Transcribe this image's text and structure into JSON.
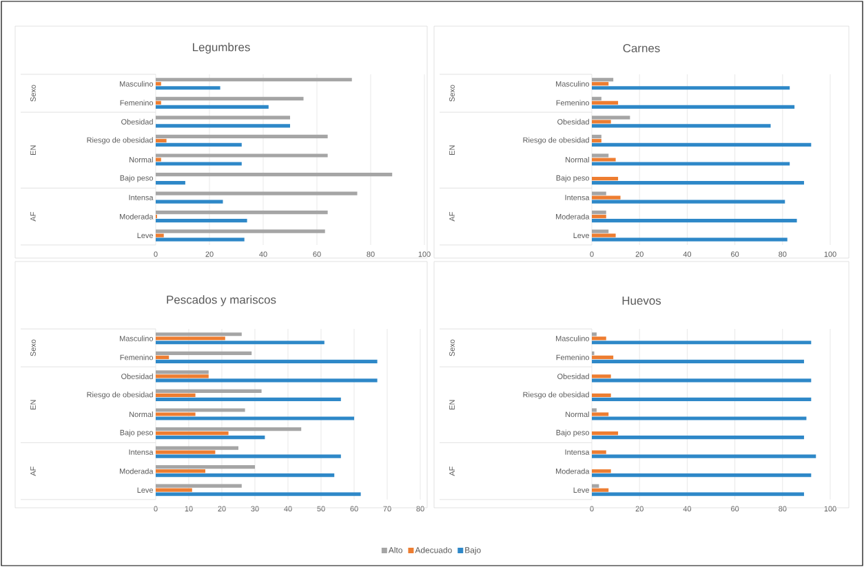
{
  "chart_data": [
    {
      "type": "bar",
      "orientation": "horizontal",
      "title": "Legumbres",
      "categories": [
        "Masculino",
        "Femenino",
        "Obesidad",
        "Riesgo de obesidad",
        "Normal",
        "Bajo peso",
        "Intensa",
        "Moderada",
        "Leve"
      ],
      "annotations": [
        "Sexo",
        "EN",
        "AF"
      ],
      "xlim": [
        0,
        100
      ],
      "xticks": [
        0,
        20,
        40,
        60,
        80,
        100
      ],
      "grid": "x",
      "series": [
        {
          "color": "#a5a5a5",
          "values": [
            73,
            55,
            50,
            64,
            64,
            88,
            75,
            64,
            63
          ]
        },
        {
          "color": "#ed7d31",
          "values": [
            2,
            2,
            0,
            4,
            2,
            0,
            0,
            0.5,
            3
          ]
        },
        {
          "color": "#2e88c8",
          "values": [
            24,
            42,
            50,
            32,
            32,
            11,
            25,
            34,
            33
          ]
        }
      ]
    },
    {
      "type": "bar",
      "orientation": "horizontal",
      "title": "Carnes",
      "categories": [
        "Masculino",
        "Femenino",
        "Obesidad",
        "Riesgo de obesidad",
        "Normal",
        "Bajo peso",
        "Intensa",
        "Moderada",
        "Leve"
      ],
      "annotations": [
        "Sexo",
        "EN",
        "AF"
      ],
      "xlim": [
        0,
        100
      ],
      "xticks": [
        0,
        20,
        40,
        60,
        80,
        100
      ],
      "grid": "x",
      "series": [
        {
          "color": "#a5a5a5",
          "values": [
            9,
            4,
            16,
            4,
            7,
            0,
            6,
            6,
            7
          ]
        },
        {
          "color": "#ed7d31",
          "values": [
            7,
            11,
            8,
            4,
            10,
            11,
            12,
            6,
            10
          ]
        },
        {
          "color": "#2e88c8",
          "values": [
            83,
            85,
            75,
            92,
            83,
            89,
            81,
            86,
            82
          ]
        }
      ]
    },
    {
      "type": "bar",
      "orientation": "horizontal",
      "title": "Pescados y mariscos",
      "categories": [
        "Masculino",
        "Femenino",
        "Obesidad",
        "Riesgo de obesidad",
        "Normal",
        "Bajo peso",
        "Intensa",
        "Moderada",
        "Leve"
      ],
      "annotations": [
        "Sexo",
        "EN",
        "AF"
      ],
      "xlim": [
        0,
        80
      ],
      "xticks": [
        0,
        10,
        20,
        30,
        40,
        50,
        60,
        70,
        80
      ],
      "grid": "x",
      "series": [
        {
          "color": "#a5a5a5",
          "values": [
            26,
            29,
            16,
            32,
            27,
            44,
            25,
            30,
            26
          ]
        },
        {
          "color": "#ed7d31",
          "values": [
            21,
            4,
            16,
            12,
            12,
            22,
            18,
            15,
            11
          ]
        },
        {
          "color": "#2e88c8",
          "values": [
            51,
            67,
            67,
            56,
            60,
            33,
            56,
            54,
            62
          ]
        }
      ]
    },
    {
      "type": "bar",
      "orientation": "horizontal",
      "title": "Huevos",
      "categories": [
        "Masculino",
        "Femenino",
        "Obesidad",
        "Riesgo de obesidad",
        "Normal",
        "Bajo peso",
        "Intensa",
        "Moderada",
        "Leve"
      ],
      "annotations": [
        "Sexo",
        "EN",
        "AF"
      ],
      "xlim": [
        0,
        100
      ],
      "xticks": [
        0,
        20,
        40,
        60,
        80,
        100
      ],
      "grid": "x",
      "legend": "bottom",
      "series": [
        {
          "name": "Alto",
          "color": "#a5a5a5",
          "values": [
            2,
            1,
            0,
            0,
            2,
            0,
            0,
            0,
            3
          ]
        },
        {
          "name": "Adecuado",
          "color": "#ed7d31",
          "values": [
            6,
            9,
            8,
            8,
            7,
            11,
            6,
            8,
            7
          ]
        },
        {
          "name": "Bajo",
          "color": "#2e88c8",
          "values": [
            92,
            89,
            92,
            92,
            90,
            89,
            94,
            92,
            89
          ]
        }
      ]
    }
  ]
}
